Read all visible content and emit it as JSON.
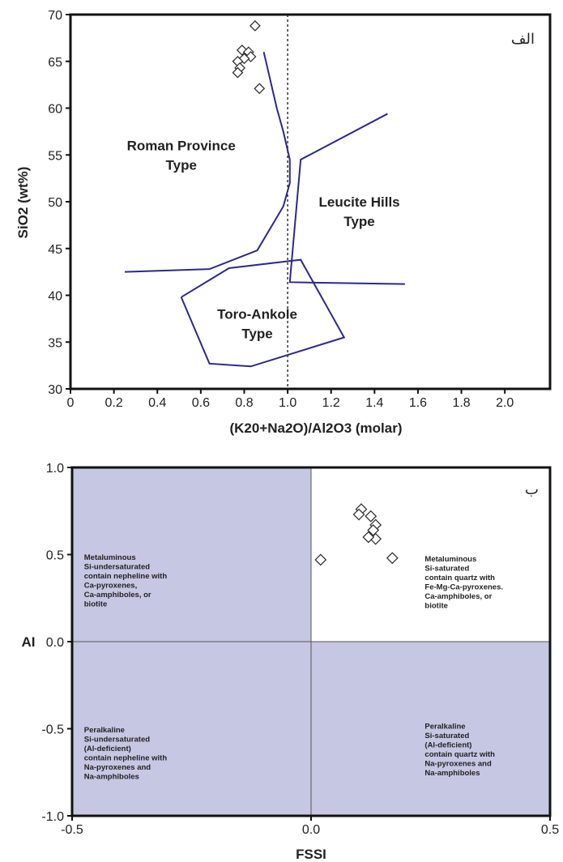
{
  "chart_data": [
    {
      "type": "scatter",
      "panel_label": "الف",
      "xlabel": "(K20+Na2O)/Al2O3  (molar)",
      "ylabel": "SiO2 (wt%)",
      "xlim": [
        0,
        2.1
      ],
      "ylim": [
        30,
        70
      ],
      "xticks": [
        "0",
        "0.2",
        "0.4",
        "0.6",
        "0.8",
        "1.0",
        "1.2",
        "1.4",
        "1.6",
        "1.8",
        "2.0"
      ],
      "yticks": [
        "30",
        "35",
        "40",
        "45",
        "50",
        "55",
        "60",
        "65",
        "70"
      ],
      "grid": false,
      "reference_line_x": 1.0,
      "points": [
        {
          "x": 0.85,
          "y": 68.8
        },
        {
          "x": 0.79,
          "y": 66.2
        },
        {
          "x": 0.82,
          "y": 66.0
        },
        {
          "x": 0.83,
          "y": 65.5
        },
        {
          "x": 0.8,
          "y": 65.3
        },
        {
          "x": 0.77,
          "y": 65.0
        },
        {
          "x": 0.78,
          "y": 64.3
        },
        {
          "x": 0.77,
          "y": 63.8
        },
        {
          "x": 0.87,
          "y": 62.1
        }
      ],
      "boundaries": [
        {
          "color": "#2a2a8a",
          "points": [
            [
              0.89,
              66.0
            ],
            [
              0.95,
              60.0
            ],
            [
              0.98,
              57.5
            ],
            [
              1.01,
              54.5
            ],
            [
              1.01,
              52.0
            ],
            [
              0.98,
              49.5
            ],
            [
              0.86,
              44.8
            ],
            [
              0.64,
              42.8
            ],
            [
              0.25,
              42.5
            ]
          ]
        },
        {
          "color": "#2a2a8a",
          "points": [
            [
              1.46,
              59.4
            ],
            [
              1.06,
              54.5
            ],
            [
              1.01,
              41.4
            ],
            [
              1.54,
              41.2
            ]
          ]
        },
        {
          "color": "#2a2a8a",
          "points": [
            [
              0.51,
              39.8
            ],
            [
              0.64,
              32.7
            ],
            [
              0.83,
              32.4
            ],
            [
              1.26,
              35.5
            ],
            [
              1.06,
              43.8
            ],
            [
              0.73,
              42.9
            ],
            [
              0.51,
              39.8
            ]
          ]
        }
      ],
      "regions": [
        {
          "lines": [
            "Roman Province",
            "Type"
          ],
          "x": 0.51,
          "y": 55.5
        },
        {
          "lines": [
            "Leucite Hills",
            "Type"
          ],
          "x": 1.33,
          "y": 49.5
        },
        {
          "lines": [
            "Toro-Ankole",
            "Type"
          ],
          "x": 0.86,
          "y": 37.5
        }
      ]
    },
    {
      "type": "scatter",
      "panel_label": "ب",
      "xlabel": "FSSI",
      "ylabel": "AI",
      "xlim": [
        -0.5,
        0.5
      ],
      "ylim": [
        -1.0,
        1.0
      ],
      "xticks": [
        "-0.5",
        "0.0",
        "0.5"
      ],
      "yticks": [
        "-1.0",
        "-0.5",
        "0.0",
        "0.5",
        "1.0"
      ],
      "grid": false,
      "shading_color": "#c5c7e3",
      "points": [
        {
          "x": 0.105,
          "y": 0.76
        },
        {
          "x": 0.1,
          "y": 0.73
        },
        {
          "x": 0.125,
          "y": 0.72
        },
        {
          "x": 0.135,
          "y": 0.67
        },
        {
          "x": 0.13,
          "y": 0.64
        },
        {
          "x": 0.135,
          "y": 0.59
        },
        {
          "x": 0.12,
          "y": 0.6
        },
        {
          "x": 0.02,
          "y": 0.47
        },
        {
          "x": 0.17,
          "y": 0.48
        }
      ],
      "quadrants": [
        {
          "lines": [
            "Metaluminous",
            "Si-undersaturated",
            "contain nepheline with",
            "Ca-pyroxenes,",
            "Ca-amphiboles, or",
            "biotite"
          ],
          "x": -0.475,
          "y": 0.47
        },
        {
          "lines": [
            "Metaluminous",
            "Si-saturated",
            "contain quartz with",
            "Fe-Mg-Ca-pyroxenes.",
            "Ca-amphiboles, or",
            "biotite"
          ],
          "x": 0.238,
          "y": 0.46
        },
        {
          "lines": [
            "Peralkaline",
            "Si-undersaturated",
            "(Al-deficient)",
            "contain nepheline with",
            "Na-pyroxenes and",
            "Na-amphiboles"
          ],
          "x": -0.475,
          "y": -0.52
        },
        {
          "lines": [
            "Peralkaline",
            "Si-saturated",
            "(Al-deficient)",
            "contain quartz with",
            "Na-pyroxenes and",
            "Na-amphiboles"
          ],
          "x": 0.238,
          "y": -0.5
        }
      ]
    }
  ]
}
